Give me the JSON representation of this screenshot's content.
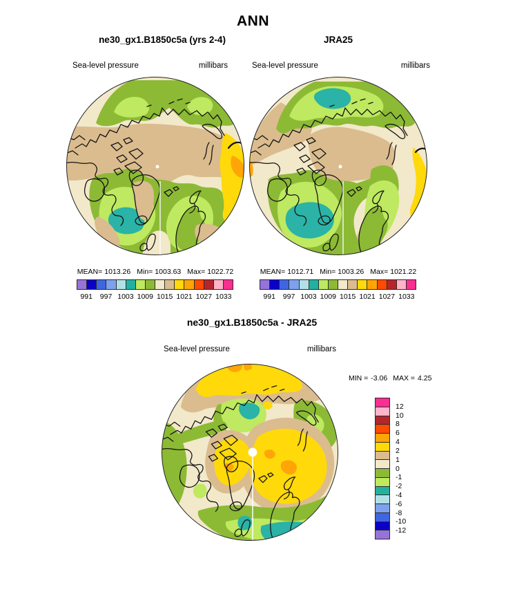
{
  "header": {
    "season": "ANN"
  },
  "palette": [
    "#9673DB",
    "#0A00C8",
    "#3E66E0",
    "#7DA1EC",
    "#B1E1E6",
    "#21B1A1",
    "#BEE960",
    "#8CBA35",
    "#F2E8CA",
    "#DBBC8E",
    "#FFD90A",
    "#FFA507",
    "#FF4A00",
    "#B5252C",
    "#FFB4C8",
    "#FB2E92"
  ],
  "map_colors": {
    "cream": "#F2E8CA",
    "tan": "#DBBC8E",
    "olive": "#8CBA35",
    "lightgreen": "#BEE960",
    "teal": "#2AB3A6",
    "yellow": "#FFD90A",
    "orange": "#FFA507"
  },
  "panels": {
    "model": {
      "title": "ne30_gx1.B1850c5a (yrs 2-4)",
      "field_label": "Sea-level pressure",
      "units": "millibars",
      "stats": {
        "mean_label": "MEAN=",
        "mean": "1013.26",
        "min_label": "Min=",
        "min": "1003.63",
        "max_label": "Max=",
        "max": "1022.72"
      }
    },
    "obs": {
      "title": "JRA25",
      "field_label": "Sea-level pressure",
      "units": "millibars",
      "stats": {
        "mean_label": "MEAN=",
        "mean": "1012.71",
        "min_label": "Min=",
        "min": "1003.26",
        "max_label": "Max=",
        "max": "1021.22"
      }
    },
    "diff": {
      "title": "ne30_gx1.B1850c5a - JRA25",
      "field_label": "Sea-level pressure",
      "units": "millibars",
      "stats": {
        "min_label": "MIN =",
        "min": "-3.06",
        "max_label": "MAX =",
        "max": "4.25"
      }
    }
  },
  "colorbars": {
    "pressure": {
      "orientation": "h",
      "cells": 16,
      "reverse": false,
      "tick_labels": [
        "991",
        "997",
        "1003",
        "1009",
        "1015",
        "1021",
        "1027",
        "1033"
      ],
      "tick_positions": [
        1,
        3,
        5,
        7,
        9,
        11,
        13,
        15
      ]
    },
    "difference": {
      "orientation": "v",
      "cells": 16,
      "reverse": true,
      "tick_labels": [
        "12",
        "10",
        "8",
        "6",
        "4",
        "2",
        "1",
        "0",
        "-1",
        "-2",
        "-4",
        "-6",
        "-8",
        "-10",
        "-12"
      ],
      "tick_positions": [
        1,
        2,
        3,
        4,
        5,
        6,
        7,
        8,
        9,
        10,
        11,
        12,
        13,
        14,
        15
      ]
    }
  },
  "chart_data": [
    {
      "type": "heatmap",
      "title": "ne30_gx1.B1850c5a (yrs 2-4)",
      "variable": "Sea-level pressure",
      "units": "millibars",
      "projection": "north polar stereographic",
      "stats": {
        "mean": 1013.26,
        "min": 1003.63,
        "max": 1022.72
      },
      "contour_levels": [
        991,
        994,
        997,
        1000,
        1003,
        1006,
        1009,
        1012,
        1015,
        1018,
        1021,
        1024,
        1027,
        1030,
        1033
      ],
      "labeled_levels": [
        991,
        997,
        1003,
        1009,
        1015,
        1021,
        1027,
        1033
      ],
      "legend_position": "below"
    },
    {
      "type": "heatmap",
      "title": "JRA25",
      "variable": "Sea-level pressure",
      "units": "millibars",
      "projection": "north polar stereographic",
      "stats": {
        "mean": 1012.71,
        "min": 1003.26,
        "max": 1021.22
      },
      "contour_levels": [
        991,
        994,
        997,
        1000,
        1003,
        1006,
        1009,
        1012,
        1015,
        1018,
        1021,
        1024,
        1027,
        1030,
        1033
      ],
      "labeled_levels": [
        991,
        997,
        1003,
        1009,
        1015,
        1021,
        1027,
        1033
      ],
      "legend_position": "below"
    },
    {
      "type": "heatmap",
      "title": "ne30_gx1.B1850c5a - JRA25",
      "variable": "Sea-level pressure difference",
      "units": "millibars",
      "projection": "north polar stereographic",
      "stats": {
        "min": -3.06,
        "max": 4.25
      },
      "contour_levels": [
        -12,
        -10,
        -8,
        -6,
        -4,
        -2,
        -1,
        0,
        1,
        2,
        4,
        6,
        8,
        10,
        12
      ],
      "legend_position": "right"
    }
  ]
}
